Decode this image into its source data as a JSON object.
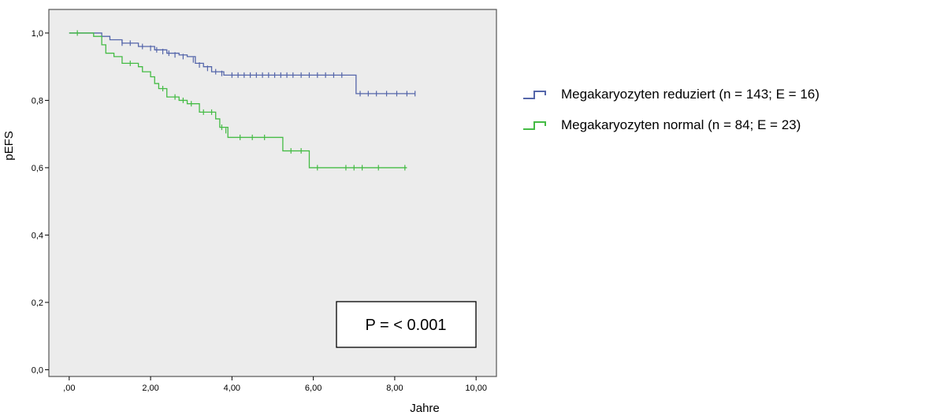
{
  "chart_data": {
    "type": "line",
    "xlabel": "Jahre",
    "ylabel": "pEFS",
    "xlim": [
      -0.5,
      10.5
    ],
    "ylim": [
      -0.02,
      1.07
    ],
    "x_ticks": [
      0,
      2,
      4,
      6,
      8,
      10
    ],
    "x_tick_labels": [
      ",00",
      "2,00",
      "4,00",
      "6,00",
      "8,00",
      "10,00"
    ],
    "y_ticks": [
      0,
      0.2,
      0.4,
      0.6,
      0.8,
      1.0
    ],
    "y_tick_labels": [
      "0,0",
      "0,2",
      "0,4",
      "0,6",
      "0,8",
      "1,0"
    ],
    "plot_background": "#ececec",
    "grid": false,
    "legend_position": "right",
    "annotation": "P = < 0.001",
    "series": [
      {
        "name": "Megakaryozyten reduziert (n = 143; E = 16)",
        "color": "#5566aa",
        "steps": [
          [
            0,
            1.0
          ],
          [
            0.8,
            0.99
          ],
          [
            1.0,
            0.98
          ],
          [
            1.3,
            0.97
          ],
          [
            1.7,
            0.96
          ],
          [
            2.1,
            0.95
          ],
          [
            2.4,
            0.94
          ],
          [
            2.7,
            0.935
          ],
          [
            2.9,
            0.93
          ],
          [
            3.1,
            0.91
          ],
          [
            3.3,
            0.9
          ],
          [
            3.5,
            0.885
          ],
          [
            3.8,
            0.875
          ],
          [
            7.0,
            0.875
          ],
          [
            7.05,
            0.82
          ],
          [
            8.5,
            0.82
          ]
        ],
        "censored": [
          [
            1.3,
            0.97
          ],
          [
            1.5,
            0.97
          ],
          [
            1.8,
            0.96
          ],
          [
            2.0,
            0.955
          ],
          [
            2.15,
            0.95
          ],
          [
            2.3,
            0.945
          ],
          [
            2.45,
            0.94
          ],
          [
            2.6,
            0.935
          ],
          [
            2.8,
            0.93
          ],
          [
            3.05,
            0.92
          ],
          [
            3.2,
            0.905
          ],
          [
            3.4,
            0.895
          ],
          [
            3.6,
            0.885
          ],
          [
            3.75,
            0.88
          ],
          [
            4.0,
            0.875
          ],
          [
            4.15,
            0.875
          ],
          [
            4.3,
            0.875
          ],
          [
            4.45,
            0.875
          ],
          [
            4.6,
            0.875
          ],
          [
            4.75,
            0.875
          ],
          [
            4.9,
            0.875
          ],
          [
            5.05,
            0.875
          ],
          [
            5.2,
            0.875
          ],
          [
            5.35,
            0.875
          ],
          [
            5.5,
            0.875
          ],
          [
            5.7,
            0.875
          ],
          [
            5.9,
            0.875
          ],
          [
            6.1,
            0.875
          ],
          [
            6.3,
            0.875
          ],
          [
            6.5,
            0.875
          ],
          [
            6.7,
            0.875
          ],
          [
            7.15,
            0.82
          ],
          [
            7.35,
            0.82
          ],
          [
            7.55,
            0.82
          ],
          [
            7.8,
            0.82
          ],
          [
            8.05,
            0.82
          ],
          [
            8.3,
            0.82
          ],
          [
            8.5,
            0.82
          ]
        ]
      },
      {
        "name": "Megakaryozyten normal (n = 84; E = 23)",
        "color": "#44bb44",
        "steps": [
          [
            0,
            1.0
          ],
          [
            0.6,
            0.99
          ],
          [
            0.8,
            0.965
          ],
          [
            0.9,
            0.94
          ],
          [
            1.1,
            0.93
          ],
          [
            1.3,
            0.91
          ],
          [
            1.7,
            0.9
          ],
          [
            1.8,
            0.885
          ],
          [
            2.0,
            0.87
          ],
          [
            2.1,
            0.85
          ],
          [
            2.2,
            0.835
          ],
          [
            2.4,
            0.81
          ],
          [
            2.7,
            0.8
          ],
          [
            2.9,
            0.79
          ],
          [
            3.2,
            0.765
          ],
          [
            3.6,
            0.745
          ],
          [
            3.7,
            0.72
          ],
          [
            3.9,
            0.69
          ],
          [
            5.2,
            0.69
          ],
          [
            5.25,
            0.65
          ],
          [
            5.85,
            0.65
          ],
          [
            5.9,
            0.6
          ],
          [
            8.3,
            0.6
          ]
        ],
        "censored": [
          [
            0.2,
            1.0
          ],
          [
            1.5,
            0.91
          ],
          [
            2.3,
            0.835
          ],
          [
            2.6,
            0.81
          ],
          [
            2.8,
            0.8
          ],
          [
            3.0,
            0.79
          ],
          [
            3.3,
            0.765
          ],
          [
            3.5,
            0.765
          ],
          [
            3.75,
            0.72
          ],
          [
            3.85,
            0.71
          ],
          [
            4.2,
            0.69
          ],
          [
            4.5,
            0.69
          ],
          [
            4.8,
            0.69
          ],
          [
            5.45,
            0.65
          ],
          [
            5.7,
            0.65
          ],
          [
            6.1,
            0.6
          ],
          [
            6.8,
            0.6
          ],
          [
            7.0,
            0.6
          ],
          [
            7.2,
            0.6
          ],
          [
            7.6,
            0.6
          ],
          [
            8.25,
            0.6
          ]
        ]
      }
    ]
  }
}
